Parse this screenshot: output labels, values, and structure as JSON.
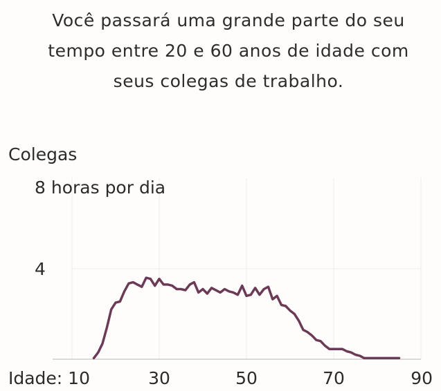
{
  "headline": {
    "lines": [
      "Você passará uma grande parte do seu",
      "tempo entre 20 e 60 anos de idade com",
      "seus colegas de trabalho."
    ]
  },
  "chart_data": {
    "type": "line",
    "title": "Colegas",
    "ytop_label": "8 horas por dia",
    "xlabel_prefix": "Idade:",
    "xlim": [
      10,
      90
    ],
    "ylim": [
      0,
      8
    ],
    "x_ticks": [
      10,
      30,
      50,
      70,
      90
    ],
    "y_ticks": [
      4
    ],
    "grid": true,
    "line_color": "#6b3a57",
    "series": [
      {
        "x": [
          15,
          16,
          17,
          18,
          19,
          20,
          21,
          22,
          23,
          24,
          25,
          26,
          27,
          28,
          29,
          30,
          31,
          32,
          33,
          34,
          35,
          36,
          37,
          38,
          39,
          40,
          41,
          42,
          43,
          44,
          45,
          46,
          47,
          48,
          49,
          50,
          51,
          52,
          53,
          54,
          55,
          56,
          57,
          58,
          59,
          60,
          61,
          62,
          63,
          64,
          65,
          66,
          67,
          68,
          69,
          70,
          71,
          72,
          73,
          74,
          75,
          76,
          77,
          78,
          79,
          80,
          81,
          82,
          83,
          84,
          85
        ],
        "y": [
          0.05,
          0.3,
          0.7,
          1.4,
          2.2,
          2.5,
          2.55,
          3.0,
          3.35,
          3.4,
          3.3,
          3.2,
          3.6,
          3.55,
          3.25,
          3.55,
          3.3,
          3.3,
          3.25,
          3.1,
          3.1,
          3.05,
          3.3,
          3.4,
          2.95,
          3.1,
          2.9,
          3.15,
          3.05,
          2.95,
          3.1,
          3.0,
          2.95,
          2.85,
          3.25,
          2.8,
          2.85,
          3.15,
          2.85,
          3.1,
          3.2,
          2.65,
          2.8,
          2.4,
          2.35,
          2.15,
          2.0,
          1.7,
          1.3,
          1.2,
          1.05,
          0.85,
          0.8,
          0.6,
          0.45,
          0.45,
          0.45,
          0.45,
          0.35,
          0.3,
          0.2,
          0.15,
          0.05,
          0.05,
          0.05,
          0.05,
          0.05,
          0.05,
          0.05,
          0.05,
          0.05
        ]
      }
    ]
  }
}
